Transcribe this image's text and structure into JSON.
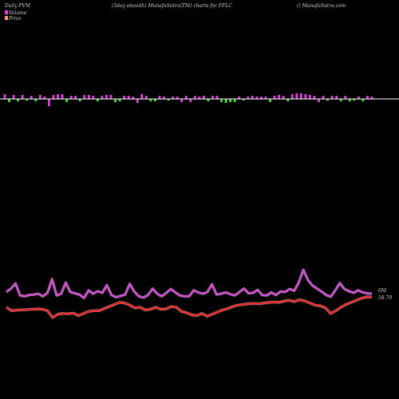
{
  "header": {
    "left": "Daily PVM",
    "center": "(5day smooth) MunafaSutra(TM) charts for FFLC",
    "right": "() MunafaSutra.com"
  },
  "legend": [
    {
      "label": "Volume",
      "color": "#e040e0"
    },
    {
      "label": "Price",
      "color": "#ff9a6a"
    }
  ],
  "chart_data": {
    "type": "bar+line",
    "volume_bars": {
      "baseline_color": "#ffffff",
      "up_color": "#e040e0",
      "down_color": "#44dd44",
      "values": [
        6,
        -4,
        5,
        -3,
        5,
        -2,
        4,
        -3,
        5,
        3,
        -9,
        5,
        6,
        6,
        -4,
        4,
        4,
        -3,
        5,
        5,
        4,
        -3,
        4,
        5,
        5,
        -4,
        -3,
        4,
        4,
        3,
        -5,
        6,
        4,
        -3,
        -3,
        4,
        3,
        -2,
        3,
        3,
        -4,
        4,
        -4,
        4,
        3,
        4,
        -3,
        4,
        4,
        -4,
        -5,
        -4,
        -4,
        3,
        -2,
        3,
        4,
        3,
        3,
        3,
        -4,
        4,
        5,
        4,
        -3,
        6,
        7,
        7,
        6,
        5,
        4,
        -4,
        4,
        -2,
        4,
        4,
        -3,
        4,
        -3,
        -2,
        3,
        -3,
        4,
        3
      ],
      "up_flags": [
        1,
        0,
        1,
        0,
        1,
        0,
        1,
        0,
        1,
        1,
        1,
        1,
        1,
        1,
        0,
        1,
        1,
        0,
        1,
        1,
        1,
        0,
        1,
        1,
        1,
        0,
        0,
        1,
        1,
        1,
        1,
        1,
        1,
        0,
        0,
        1,
        1,
        0,
        1,
        1,
        1,
        1,
        1,
        1,
        1,
        1,
        0,
        1,
        1,
        0,
        0,
        0,
        0,
        1,
        0,
        1,
        1,
        1,
        1,
        1,
        0,
        1,
        1,
        1,
        0,
        1,
        1,
        1,
        1,
        1,
        1,
        1,
        1,
        0,
        1,
        1,
        0,
        1,
        0,
        0,
        1,
        0,
        1,
        1
      ]
    },
    "volume_line": {
      "name": "Volume",
      "label": "0M",
      "color": "#e040e0",
      "values": [
        0.7,
        0.78,
        0.9,
        0.62,
        0.6,
        0.63,
        0.64,
        0.66,
        0.6,
        0.68,
        1.0,
        0.62,
        0.66,
        0.92,
        0.7,
        0.67,
        0.64,
        0.56,
        0.74,
        0.66,
        0.72,
        0.68,
        0.86,
        0.63,
        0.58,
        0.61,
        0.64,
        0.89,
        0.71,
        0.6,
        0.57,
        0.63,
        0.78,
        0.66,
        0.6,
        0.68,
        0.77,
        0.69,
        0.62,
        0.6,
        0.6,
        0.74,
        0.69,
        0.66,
        0.7,
        0.88,
        0.64,
        0.66,
        0.69,
        0.65,
        0.62,
        0.7,
        0.78,
        0.67,
        0.68,
        0.75,
        0.63,
        0.62,
        0.69,
        0.63,
        0.71,
        0.7,
        0.77,
        0.73,
        0.92,
        1.22,
        0.98,
        0.85,
        0.78,
        0.71,
        0.63,
        0.59,
        0.74,
        0.91,
        0.77,
        0.72,
        0.68,
        0.74,
        0.69,
        0.67,
        0.66
      ],
      "line_width": 2
    },
    "price_line": {
      "name": "Price",
      "label": "58.79",
      "color": "#ff2020",
      "values": [
        58.05,
        57.8,
        57.84,
        57.86,
        57.88,
        57.9,
        57.92,
        57.9,
        57.8,
        57.3,
        57.55,
        57.6,
        57.58,
        57.62,
        57.45,
        57.6,
        57.75,
        57.8,
        57.8,
        57.95,
        58.1,
        58.25,
        58.4,
        58.35,
        58.2,
        58.0,
        58.05,
        57.85,
        57.9,
        58.05,
        57.9,
        57.92,
        58.1,
        58.05,
        57.75,
        57.65,
        57.5,
        57.45,
        57.6,
        57.4,
        57.55,
        57.7,
        57.85,
        57.95,
        58.1,
        58.2,
        58.25,
        58.3,
        58.32,
        58.3,
        58.35,
        58.4,
        58.42,
        58.4,
        58.5,
        58.55,
        58.45,
        58.6,
        58.5,
        58.35,
        58.2,
        58.15,
        58.0,
        57.6,
        57.8,
        58.05,
        58.25,
        58.4,
        58.55,
        58.7,
        58.8,
        58.79
      ],
      "line_width": 2.2
    },
    "grid": false
  }
}
